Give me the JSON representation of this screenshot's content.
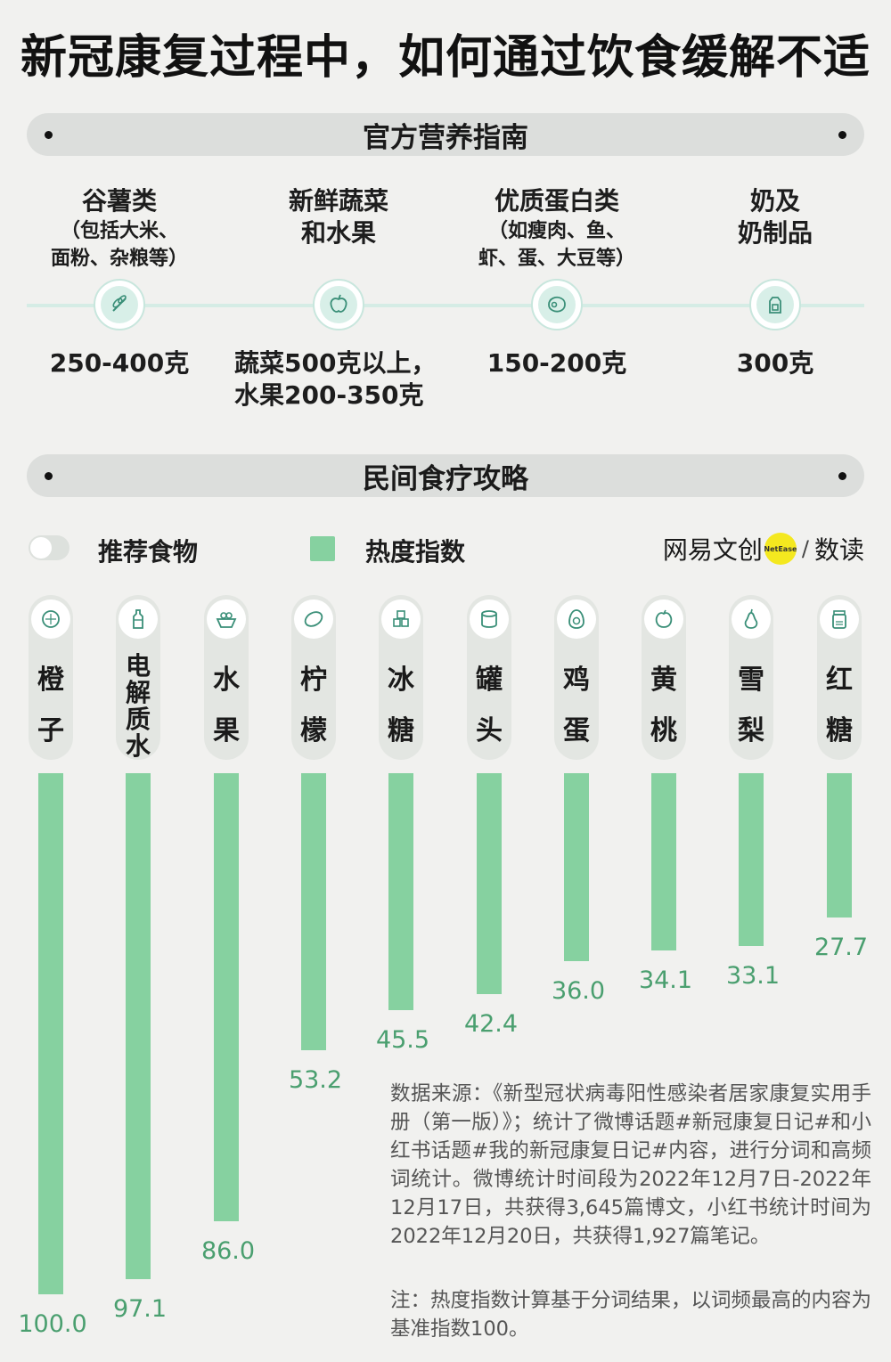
{
  "title": "新冠康复过程中，如何通过饮食缓解不适",
  "section_official": "官方营养指南",
  "guide": [
    {
      "name": "谷薯类",
      "note": "（包括大米、面粉、杂粮等）",
      "note_lines": [
        "（包括大米、",
        "面粉、杂粮等）"
      ],
      "name_lines": [
        "谷薯类"
      ],
      "icon": "wheat-icon",
      "amount_lines": [
        "250-400克"
      ]
    },
    {
      "name": "新鲜蔬菜和水果",
      "note": "",
      "note_lines": [],
      "name_lines": [
        "新鲜蔬菜",
        "和水果"
      ],
      "icon": "apple-icon",
      "amount_lines": [
        "蔬菜500克以上，",
        "水果200-350克"
      ]
    },
    {
      "name": "优质蛋白类",
      "note": "（如瘦肉、鱼、虾、蛋、大豆等）",
      "note_lines": [
        "（如瘦肉、鱼、",
        "虾、蛋、大豆等）"
      ],
      "name_lines": [
        "优质蛋白类"
      ],
      "icon": "meat-icon",
      "amount_lines": [
        "150-200克"
      ]
    },
    {
      "name": "奶及奶制品",
      "note": "",
      "note_lines": [],
      "name_lines": [
        "奶及",
        "奶制品"
      ],
      "icon": "milk-carton-icon",
      "amount_lines": [
        "300克"
      ]
    }
  ],
  "section_folk": "民间食疗攻略",
  "legend": {
    "foods": "推荐食物",
    "index": "热度指数"
  },
  "brand": {
    "name": "网易文创",
    "badge": "NetEase",
    "slash": "/",
    "suffix": "数读"
  },
  "colors": {
    "bar": "#86d1a0",
    "label": "#4a9f6f",
    "accent": "#f4e81f"
  },
  "chart_data": {
    "type": "bar",
    "orientation": "vertical-down",
    "categories": [
      "橙子",
      "电解质水",
      "水果",
      "柠檬",
      "冰糖",
      "罐头",
      "鸡蛋",
      "黄桃",
      "雪梨",
      "红糖"
    ],
    "icons": [
      "orange-icon",
      "bottle-icon",
      "fruit-basket-icon",
      "lemon-icon",
      "sugar-cube-icon",
      "can-icon",
      "egg-icon",
      "peach-icon",
      "pear-icon",
      "brown-sugar-jar-icon"
    ],
    "series": [
      {
        "name": "热度指数",
        "values": [
          100.0,
          97.1,
          86.0,
          53.2,
          45.5,
          42.4,
          36.0,
          34.1,
          33.1,
          27.7
        ]
      }
    ],
    "value_labels": [
      "100.0",
      "97.1",
      "86.0",
      "53.2",
      "45.5",
      "42.4",
      "36.0",
      "34.1",
      "33.1",
      "27.7"
    ],
    "ylim": [
      0,
      100
    ]
  },
  "source": "数据来源：《新型冠状病毒阳性感染者居家康复实用手册（第一版）》；统计了微博话题#新冠康复日记#和小红书话题#我的新冠康复日记#内容，进行分词和高频词统计。微博统计时间段为2022年12月7日-2022年12月17日，共获得3,645篇博文，小红书统计时间为2022年12月20日，共获得1,927篇笔记。",
  "note": "注：热度指数计算基于分词结果，以词频最高的内容为基准指数100。"
}
